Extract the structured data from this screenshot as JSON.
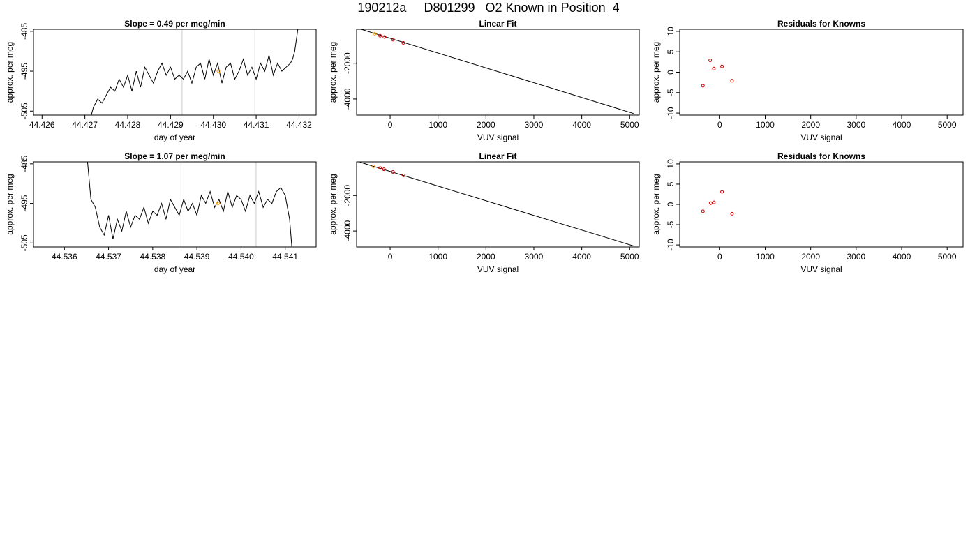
{
  "page_title": "190212a     D801299   O2 Known in Position  4",
  "colors": {
    "line": "#000000",
    "vline": "#cccccc",
    "highlight": "#ffa500",
    "residual": "#cc0000",
    "frame": "#000000"
  },
  "chart_data": [
    {
      "id": "ts1",
      "type": "line",
      "title": "Slope =  0.49  per meg/min",
      "xlabel": "day of year",
      "ylabel": "approx. per meg",
      "xlim": [
        44.4258,
        44.4324
      ],
      "ylim": [
        -506,
        -484.5
      ],
      "x_ticks": [
        44.426,
        44.427,
        44.428,
        44.429,
        44.43,
        44.431,
        44.432
      ],
      "x_tick_labels": [
        "44.426",
        "44.427",
        "44.428",
        "44.429",
        "44.430",
        "44.431",
        "44.432"
      ],
      "y_ticks": [
        -485,
        -495,
        -505
      ],
      "y_tick_labels": [
        "-485",
        "-495",
        "-505"
      ],
      "vlines": [
        44.42927,
        44.43097
      ],
      "x": [
        44.42715,
        44.4272,
        44.4273,
        44.4274,
        44.4275,
        44.4276,
        44.4277,
        44.4278,
        44.4279,
        44.428,
        44.4281,
        44.4282,
        44.4283,
        44.4284,
        44.4285,
        44.4286,
        44.4287,
        44.4288,
        44.4289,
        44.429,
        44.4291,
        44.4292,
        44.4293,
        44.4294,
        44.4295,
        44.4296,
        44.4297,
        44.4298,
        44.4299,
        44.43,
        44.4301,
        44.4302,
        44.4303,
        44.4304,
        44.4305,
        44.4306,
        44.4307,
        44.4308,
        44.4309,
        44.431,
        44.4311,
        44.4312,
        44.4313,
        44.4314,
        44.4315,
        44.4316,
        44.4317,
        44.4318,
        44.43185,
        44.4319,
        44.43198
      ],
      "y": [
        -506,
        -504,
        -502,
        -503,
        -501,
        -499,
        -500,
        -497,
        -499,
        -496,
        -500,
        -495,
        -499,
        -494,
        -496,
        -498,
        -495,
        -493,
        -496,
        -494,
        -497,
        -496,
        -497,
        -495,
        -498,
        -494,
        -493,
        -497,
        -492,
        -496,
        -493,
        -498,
        -494,
        -493,
        -497,
        -495,
        -492,
        -496,
        -494,
        -497,
        -493,
        -495,
        -491,
        -496,
        -493,
        -495,
        -494,
        -493,
        -492,
        -490,
        -484
      ],
      "highlight_points": [
        {
          "x": 44.43012,
          "y": -495
        }
      ]
    },
    {
      "id": "lf1",
      "type": "line",
      "title": "Linear Fit",
      "xlabel": "VUV signal",
      "ylabel": "approx. per meg",
      "xlim": [
        -700,
        5200
      ],
      "ylim": [
        -4900,
        -100
      ],
      "x_ticks": [
        0,
        1000,
        2000,
        3000,
        4000,
        5000
      ],
      "x_tick_labels": [
        "0",
        "1000",
        "2000",
        "3000",
        "4000",
        "5000"
      ],
      "y_ticks": [
        -2000,
        -4000
      ],
      "y_tick_labels": [
        "-2000",
        "-4000"
      ],
      "fit_line": {
        "x": [
          -630,
          5080
        ],
        "y": [
          -80,
          -4810
        ]
      },
      "points": [
        {
          "x": -325,
          "y": -350,
          "color": "orange"
        },
        {
          "x": -210,
          "y": -460,
          "color": "red"
        },
        {
          "x": -120,
          "y": -530,
          "color": "red"
        },
        {
          "x": 60,
          "y": -680,
          "color": "red"
        },
        {
          "x": 275,
          "y": -860,
          "color": "red"
        }
      ]
    },
    {
      "id": "res1",
      "type": "scatter",
      "title": "Residuals for Knowns",
      "xlabel": "VUV signal",
      "ylabel": "approx. per meg",
      "xlim": [
        -880,
        5350
      ],
      "ylim": [
        -10.5,
        10.5
      ],
      "x_ticks": [
        0,
        1000,
        2000,
        3000,
        4000,
        5000
      ],
      "x_tick_labels": [
        "0",
        "1000",
        "2000",
        "3000",
        "4000",
        "5000"
      ],
      "y_ticks": [
        10,
        5,
        0,
        -5,
        -10
      ],
      "y_tick_labels": [
        "10",
        "5",
        "0",
        "-5",
        "-10"
      ],
      "points": [
        {
          "x": -370,
          "y": -3.3
        },
        {
          "x": -210,
          "y": 2.9
        },
        {
          "x": -130,
          "y": 0.9
        },
        {
          "x": 50,
          "y": 1.4
        },
        {
          "x": 270,
          "y": -2.1
        }
      ]
    },
    {
      "id": "ts2",
      "type": "line",
      "title": "Slope =  1.07  per meg/min",
      "xlabel": "day of year",
      "ylabel": "approx. per meg",
      "xlim": [
        44.5353,
        44.5417
      ],
      "ylim": [
        -506,
        -484.5
      ],
      "x_ticks": [
        44.536,
        44.537,
        44.538,
        44.539,
        44.54,
        44.541
      ],
      "x_tick_labels": [
        "44.536",
        "44.537",
        "44.538",
        "44.539",
        "44.540",
        "44.541"
      ],
      "y_ticks": [
        -485,
        -495,
        -505
      ],
      "y_tick_labels": [
        "-485",
        "-495",
        "-505"
      ],
      "vlines": [
        44.53864,
        44.54034
      ],
      "x": [
        44.53652,
        44.5366,
        44.5367,
        44.5368,
        44.5369,
        44.537,
        44.5371,
        44.5372,
        44.5373,
        44.5374,
        44.5375,
        44.5376,
        44.5377,
        44.5378,
        44.5379,
        44.538,
        44.5381,
        44.5382,
        44.5383,
        44.5384,
        44.5385,
        44.5386,
        44.5387,
        44.5388,
        44.5389,
        44.539,
        44.5391,
        44.5392,
        44.5393,
        44.5394,
        44.5395,
        44.5396,
        44.5397,
        44.5398,
        44.5399,
        44.54,
        44.5401,
        44.5402,
        44.5403,
        44.5404,
        44.5405,
        44.5406,
        44.5407,
        44.5408,
        44.5409,
        44.541,
        44.5411,
        44.54115
      ],
      "y": [
        -484,
        -494,
        -496,
        -501,
        -503,
        -498,
        -504,
        -499,
        -502,
        -497,
        -501,
        -498,
        -499,
        -496,
        -500,
        -497,
        -498,
        -495,
        -499,
        -494,
        -496,
        -498,
        -494,
        -497,
        -495,
        -498,
        -493,
        -495,
        -492,
        -496,
        -494,
        -497,
        -492,
        -496,
        -493,
        -494,
        -497,
        -493,
        -495,
        -492,
        -496,
        -494,
        -495,
        -492,
        -491,
        -493,
        -499,
        -506
      ],
      "highlight_points": [
        {
          "x": 44.53948,
          "y": -495
        }
      ]
    },
    {
      "id": "lf2",
      "type": "line",
      "title": "Linear Fit",
      "xlabel": "VUV signal",
      "ylabel": "approx. per meg",
      "xlim": [
        -700,
        5200
      ],
      "ylim": [
        -4900,
        -100
      ],
      "x_ticks": [
        0,
        1000,
        2000,
        3000,
        4000,
        5000
      ],
      "x_tick_labels": [
        "0",
        "1000",
        "2000",
        "3000",
        "4000",
        "5000"
      ],
      "y_ticks": [
        -2000,
        -4000
      ],
      "y_tick_labels": [
        "-2000",
        "-4000"
      ],
      "fit_line": {
        "x": [
          -630,
          5080
        ],
        "y": [
          -120,
          -4840
        ]
      },
      "points": [
        {
          "x": -350,
          "y": -350,
          "color": "orange"
        },
        {
          "x": -210,
          "y": -450,
          "color": "red"
        },
        {
          "x": -130,
          "y": -520,
          "color": "red"
        },
        {
          "x": 60,
          "y": -670,
          "color": "red"
        },
        {
          "x": 280,
          "y": -860,
          "color": "red"
        }
      ]
    },
    {
      "id": "res2",
      "type": "scatter",
      "title": "Residuals for Knowns",
      "xlabel": "VUV signal",
      "ylabel": "approx. per meg",
      "xlim": [
        -880,
        5350
      ],
      "ylim": [
        -10.5,
        10.5
      ],
      "x_ticks": [
        0,
        1000,
        2000,
        3000,
        4000,
        5000
      ],
      "x_tick_labels": [
        "0",
        "1000",
        "2000",
        "3000",
        "4000",
        "5000"
      ],
      "y_ticks": [
        10,
        5,
        0,
        -5,
        -10
      ],
      "y_tick_labels": [
        "10",
        "5",
        "0",
        "-5",
        "-10"
      ],
      "points": [
        {
          "x": -370,
          "y": -1.7
        },
        {
          "x": -200,
          "y": 0.3
        },
        {
          "x": -130,
          "y": 0.5
        },
        {
          "x": 50,
          "y": 3.1
        },
        {
          "x": 270,
          "y": -2.3
        }
      ]
    }
  ]
}
